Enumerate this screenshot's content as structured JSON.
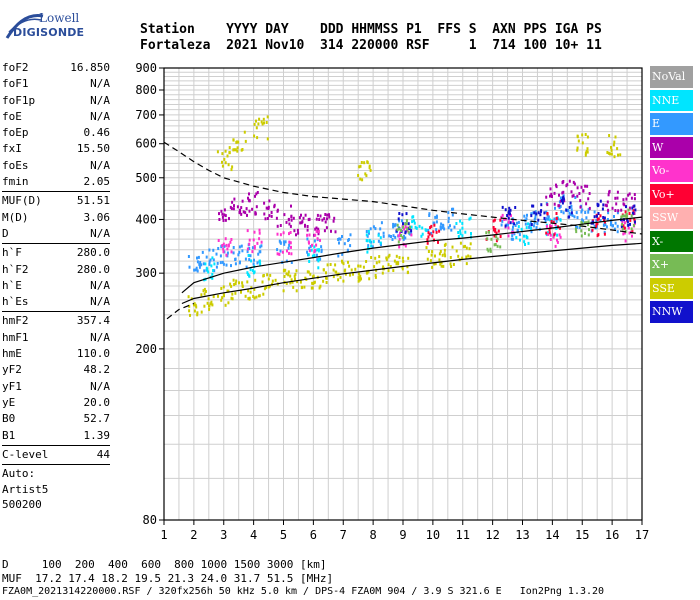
{
  "logo": {
    "line1": "Lowell",
    "line2": "DIGISONDE"
  },
  "header": {
    "line1": "Station    YYYY DAY    DDD HHMMSS P1  FFS S  AXN PPS IGA PS",
    "line2": "Fortaleza  2021 Nov10  314 220000 RSF     1  714 100 10+ 11"
  },
  "params": {
    "g1": [
      {
        "k": "foF2",
        "v": "16.850"
      },
      {
        "k": "foF1",
        "v": "N/A"
      },
      {
        "k": "foF1p",
        "v": "N/A"
      },
      {
        "k": "foE",
        "v": "N/A"
      },
      {
        "k": "foEp",
        "v": "0.46"
      },
      {
        "k": "fxI",
        "v": "15.50"
      },
      {
        "k": "foEs",
        "v": "N/A"
      },
      {
        "k": "fmin",
        "v": "2.05"
      }
    ],
    "g2": [
      {
        "k": "MUF(D)",
        "v": "51.51"
      },
      {
        "k": "M(D)",
        "v": "3.06"
      },
      {
        "k": "D",
        "v": "N/A"
      }
    ],
    "g3": [
      {
        "k": "h`F",
        "v": "280.0"
      },
      {
        "k": "h`F2",
        "v": "280.0"
      },
      {
        "k": "h`E",
        "v": "N/A"
      },
      {
        "k": "h`Es",
        "v": "N/A"
      }
    ],
    "g4": [
      {
        "k": "hmF2",
        "v": "357.4"
      },
      {
        "k": "hmF1",
        "v": "N/A"
      },
      {
        "k": "hmE",
        "v": "110.0"
      },
      {
        "k": "yF2",
        "v": "48.2"
      },
      {
        "k": "yF1",
        "v": "N/A"
      },
      {
        "k": "yE",
        "v": "20.0"
      },
      {
        "k": "B0",
        "v": "52.7"
      },
      {
        "k": "B1",
        "v": "1.39"
      }
    ],
    "g5": [
      {
        "k": "C-level",
        "v": "44"
      }
    ],
    "auto_label": "Auto:",
    "auto_name": "Artist5",
    "auto_ver": "500200"
  },
  "legend": [
    {
      "label": "NoVal",
      "color": "#a0a0a0"
    },
    {
      "label": "NNE",
      "color": "#00e5ff"
    },
    {
      "label": "E",
      "color": "#3399ff"
    },
    {
      "label": "W",
      "color": "#aa00aa"
    },
    {
      "label": "Vo-",
      "color": "#ff33cc"
    },
    {
      "label": "Vo+",
      "color": "#ff0033"
    },
    {
      "label": "SSW",
      "color": "#ffb0b0"
    },
    {
      "label": "X-",
      "color": "#007700"
    },
    {
      "label": "X+",
      "color": "#77bb55"
    },
    {
      "label": "SSE",
      "color": "#cccc00"
    },
    {
      "label": "NNW",
      "color": "#1111cc"
    }
  ],
  "chart_data": {
    "type": "scatter",
    "title": "",
    "xlabel": "",
    "ylabel": "",
    "xlim": [
      1,
      17
    ],
    "ylim": [
      80,
      900
    ],
    "yscale": "log",
    "grid": true,
    "x_ticks": [
      1,
      2,
      3,
      4,
      5,
      6,
      7,
      8,
      9,
      10,
      11,
      12,
      13,
      14,
      15,
      16,
      17
    ],
    "y_ticks": [
      80,
      200,
      300,
      400,
      500,
      600,
      700,
      800,
      900
    ],
    "clusters": [
      {
        "name": "SSE",
        "color": "#cccc00",
        "points": [
          [
            2,
            255
          ],
          [
            2.5,
            262
          ],
          [
            3,
            270
          ],
          [
            3.5,
            275
          ],
          [
            4,
            280
          ],
          [
            4.5,
            285
          ],
          [
            5,
            290
          ],
          [
            5.5,
            292
          ],
          [
            6,
            296
          ],
          [
            6.5,
            300
          ],
          [
            7,
            305
          ],
          [
            7.5,
            308
          ],
          [
            8,
            312
          ],
          [
            8.5,
            316
          ],
          [
            9,
            320
          ],
          [
            10,
            328
          ],
          [
            10.5,
            333
          ],
          [
            11,
            338
          ],
          [
            3,
            560
          ],
          [
            3.5,
            610
          ],
          [
            4.2,
            660
          ],
          [
            15,
            605
          ],
          [
            16,
            600
          ],
          [
            7.7,
            520
          ]
        ]
      },
      {
        "name": "E",
        "color": "#3399ff",
        "points": [
          [
            2,
            320
          ],
          [
            2.5,
            325
          ],
          [
            3,
            330
          ],
          [
            3.5,
            332
          ],
          [
            4,
            335
          ],
          [
            5,
            340
          ],
          [
            6,
            345
          ],
          [
            7,
            352
          ],
          [
            8,
            370
          ],
          [
            8.5,
            380
          ],
          [
            9,
            385
          ],
          [
            10,
            395
          ],
          [
            10.5,
            405
          ],
          [
            12.5,
            385
          ],
          [
            13,
            390
          ],
          [
            13.5,
            400
          ],
          [
            14,
            420
          ],
          [
            14.5,
            435
          ],
          [
            15,
            410
          ],
          [
            15.5,
            400
          ],
          [
            16,
            395
          ]
        ]
      },
      {
        "name": "W",
        "color": "#aa00aa",
        "points": [
          [
            3,
            420
          ],
          [
            3.5,
            430
          ],
          [
            4,
            440
          ],
          [
            4.5,
            430
          ],
          [
            5,
            410
          ],
          [
            5.5,
            395
          ],
          [
            6,
            390
          ],
          [
            6.5,
            400
          ],
          [
            14,
            460
          ],
          [
            14.5,
            470
          ],
          [
            15,
            455
          ],
          [
            16,
            445
          ],
          [
            16.5,
            440
          ]
        ]
      },
      {
        "name": "NNE",
        "color": "#00e5ff",
        "points": [
          [
            2.5,
            310
          ],
          [
            4,
            315
          ],
          [
            6,
            330
          ],
          [
            8,
            360
          ],
          [
            9.5,
            390
          ],
          [
            11,
            390
          ],
          [
            13,
            375
          ],
          [
            14,
            385
          ]
        ]
      },
      {
        "name": "Vo-",
        "color": "#ff33cc",
        "points": [
          [
            3,
            350
          ],
          [
            4,
            360
          ],
          [
            5,
            355
          ],
          [
            6,
            358
          ],
          [
            9,
            370
          ],
          [
            12.5,
            390
          ],
          [
            14,
            370
          ],
          [
            16.5,
            380
          ]
        ]
      },
      {
        "name": "Vo+",
        "color": "#ff0033",
        "points": [
          [
            10,
            370
          ],
          [
            12,
            380
          ],
          [
            14,
            395
          ],
          [
            15.5,
            390
          ],
          [
            16.5,
            400
          ]
        ]
      },
      {
        "name": "NNW",
        "color": "#1111cc",
        "points": [
          [
            9,
            395
          ],
          [
            12.5,
            410
          ],
          [
            13.5,
            415
          ],
          [
            14.5,
            430
          ],
          [
            15.5,
            420
          ],
          [
            16.5,
            410
          ]
        ]
      },
      {
        "name": "X+",
        "color": "#77bb55",
        "points": [
          [
            9,
            380
          ],
          [
            12,
            360
          ],
          [
            15,
            380
          ],
          [
            16.5,
            400
          ]
        ]
      }
    ],
    "curves": [
      {
        "name": "profile-upper",
        "style": "solid",
        "points": [
          [
            1.6,
            270
          ],
          [
            2,
            285
          ],
          [
            3,
            300
          ],
          [
            4,
            310
          ],
          [
            5,
            318
          ],
          [
            6,
            326
          ],
          [
            7,
            335
          ],
          [
            8,
            343
          ],
          [
            9,
            350
          ],
          [
            10,
            357
          ],
          [
            11,
            362
          ],
          [
            12,
            368
          ],
          [
            13,
            375
          ],
          [
            14,
            382
          ],
          [
            15,
            390
          ],
          [
            16,
            398
          ],
          [
            17,
            405
          ]
        ]
      },
      {
        "name": "profile-lower",
        "style": "solid",
        "points": [
          [
            1.6,
            255
          ],
          [
            2,
            262
          ],
          [
            3,
            270
          ],
          [
            4,
            277
          ],
          [
            5,
            285
          ],
          [
            6,
            292
          ],
          [
            7,
            299
          ],
          [
            8,
            305
          ],
          [
            9,
            311
          ],
          [
            10,
            317
          ],
          [
            11,
            323
          ],
          [
            12,
            328
          ],
          [
            13,
            333
          ],
          [
            14,
            338
          ],
          [
            15,
            343
          ],
          [
            16,
            348
          ],
          [
            17,
            352
          ]
        ]
      },
      {
        "name": "muf-curve",
        "style": "dashed",
        "points": [
          [
            1,
            605
          ],
          [
            1.5,
            575
          ],
          [
            2,
            545
          ],
          [
            2.5,
            520
          ],
          [
            3,
            500
          ],
          [
            4,
            478
          ],
          [
            5,
            462
          ],
          [
            6,
            452
          ],
          [
            7,
            446
          ],
          [
            8,
            440
          ],
          [
            9,
            430
          ],
          [
            10,
            420
          ],
          [
            11,
            412
          ],
          [
            12,
            405
          ],
          [
            13,
            398
          ],
          [
            14,
            392
          ],
          [
            15,
            386
          ],
          [
            16,
            378
          ],
          [
            17,
            370
          ]
        ]
      },
      {
        "name": "trace-lower",
        "style": "dashed",
        "points": [
          [
            1.1,
            235
          ],
          [
            1.5,
            247
          ],
          [
            2,
            255
          ]
        ]
      }
    ]
  },
  "footer": {
    "line1": "D     100  200  400  600  800 1000 1500 3000 [km]",
    "line2": "MUF  17.2 17.4 18.2 19.5 21.3 24.0 31.7 51.5 [MHz]",
    "line3": "FZA0M_2021314220000.RSF / 320fx256h 50 kHz 5.0 km / DPS-4 FZA0M 904 / 3.9 S 321.6 E   Ion2Png 1.3.20"
  }
}
